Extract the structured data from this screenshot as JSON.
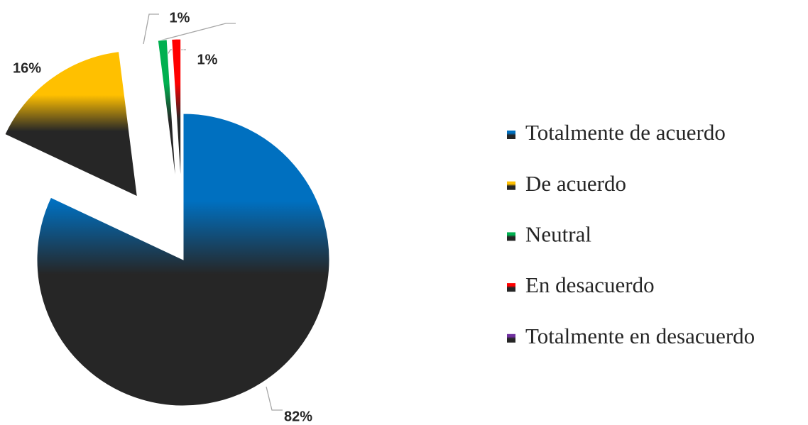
{
  "chart_data": {
    "type": "pie",
    "categories": [
      "Totalmente de acuerdo",
      "De acuerdo",
      "Neutral",
      "En desacuerdo",
      "Totalmente en desacuerdo"
    ],
    "values": [
      82,
      16,
      1,
      1,
      0
    ],
    "value_labels": [
      "82%",
      "16%",
      "1%",
      "1%",
      null
    ],
    "colors": [
      "#0070c0",
      "#ffc000",
      "#00b050",
      "#ff0000",
      "#7030a0"
    ],
    "legend": "right"
  }
}
